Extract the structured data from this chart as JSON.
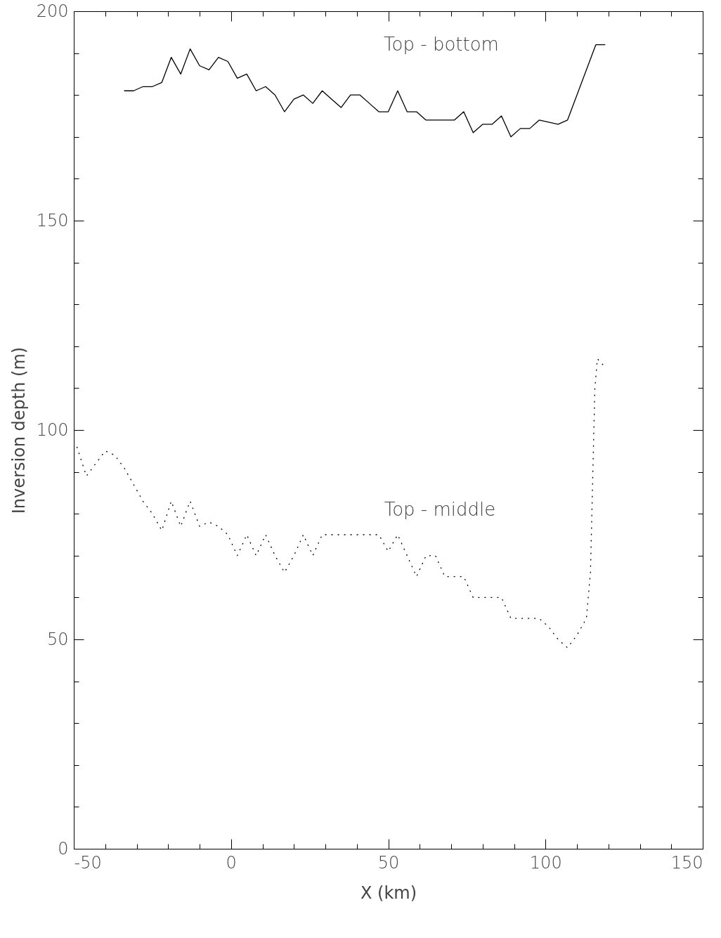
{
  "chart_data": {
    "type": "line",
    "xlabel": "X (km)",
    "ylabel": "Inversion depth (m)",
    "xlim": [
      -50,
      150
    ],
    "ylim": [
      0,
      200
    ],
    "xticks": [
      -50,
      {
        "value": -40,
        "label": null
      },
      {
        "value": -30,
        "label": null
      },
      {
        "value": -20,
        "label": null
      },
      {
        "value": -10,
        "label": null
      },
      0,
      {
        "value": 10,
        "label": null
      },
      {
        "value": 20,
        "label": null
      },
      {
        "value": 30,
        "label": null
      },
      {
        "value": 40,
        "label": null
      },
      50,
      {
        "value": 60,
        "label": null
      },
      {
        "value": 70,
        "label": null
      },
      {
        "value": 80,
        "label": null
      },
      {
        "value": 90,
        "label": null
      },
      100,
      {
        "value": 110,
        "label": null
      },
      {
        "value": 120,
        "label": null
      },
      {
        "value": 130,
        "label": null
      },
      {
        "value": 140,
        "label": null
      },
      150
    ],
    "yticks": [
      0,
      {
        "value": 10,
        "label": null
      },
      {
        "value": 20,
        "label": null
      },
      {
        "value": 30,
        "label": null
      },
      {
        "value": 40,
        "label": null
      },
      50,
      {
        "value": 60,
        "label": null
      },
      {
        "value": 70,
        "label": null
      },
      {
        "value": 80,
        "label": null
      },
      {
        "value": 90,
        "label": null
      },
      100,
      {
        "value": 110,
        "label": null
      },
      {
        "value": 120,
        "label": null
      },
      {
        "value": 130,
        "label": null
      },
      {
        "value": 140,
        "label": null
      },
      150,
      {
        "value": 160,
        "label": null
      },
      {
        "value": 170,
        "label": null
      },
      {
        "value": 180,
        "label": null
      },
      {
        "value": 190,
        "label": null
      },
      200
    ],
    "grid": false,
    "series": [
      {
        "color": "#000000",
        "line_style": "solid",
        "x": [
          -34,
          -31,
          -28,
          -25,
          -22,
          -19,
          -16,
          -13,
          -10,
          -7,
          -4,
          -1,
          2,
          5,
          8,
          11,
          14,
          17,
          20,
          23,
          26,
          29,
          32,
          35,
          38,
          41,
          44,
          47,
          50,
          53,
          56,
          59,
          62,
          65,
          68,
          71,
          74,
          77,
          80,
          83,
          86,
          89,
          92,
          95,
          98,
          104,
          107,
          116,
          119
        ],
        "values": [
          181,
          181,
          182,
          182,
          183,
          189,
          185,
          191,
          187,
          186,
          189,
          188,
          184,
          185,
          181,
          182,
          180,
          176,
          179,
          180,
          178,
          181,
          179,
          177,
          180,
          180,
          178,
          176,
          176,
          181,
          176,
          176,
          174,
          174,
          174,
          174,
          176,
          171,
          173,
          173,
          175,
          170,
          172,
          172,
          174,
          173,
          174,
          192,
          192
        ]
      },
      {
        "color": "#000000",
        "line_style": "dotted",
        "x": [
          -49,
          -46,
          -43,
          -40,
          -37,
          -34,
          -31,
          -28,
          -25,
          -22,
          -19,
          -16,
          -13,
          -10,
          -7,
          -4,
          -1,
          2,
          5,
          8,
          11,
          14,
          17,
          20,
          23,
          26,
          29,
          32,
          35,
          38,
          41,
          44,
          47,
          50,
          53,
          56,
          59,
          62,
          65,
          68,
          71,
          74,
          77,
          80,
          83,
          86,
          89,
          92,
          95,
          98,
          101,
          104,
          107,
          110,
          113,
          114.3,
          115,
          115.7,
          116.5,
          119
        ],
        "values": [
          96,
          89,
          92,
          95,
          94,
          91,
          87,
          83,
          80,
          76,
          83,
          77,
          83,
          77,
          78,
          77,
          75,
          70,
          75,
          70,
          75,
          70,
          66,
          70,
          75,
          70,
          75,
          75,
          75,
          75,
          75,
          75,
          75,
          71,
          75,
          70,
          65,
          70,
          70,
          65,
          65,
          65,
          60,
          60,
          60,
          60,
          55,
          55,
          55,
          55,
          53,
          50,
          48,
          51,
          55,
          66,
          88,
          110,
          117,
          115
        ]
      }
    ],
    "annotations": [
      "Top - bottom",
      "Top - middle"
    ]
  }
}
